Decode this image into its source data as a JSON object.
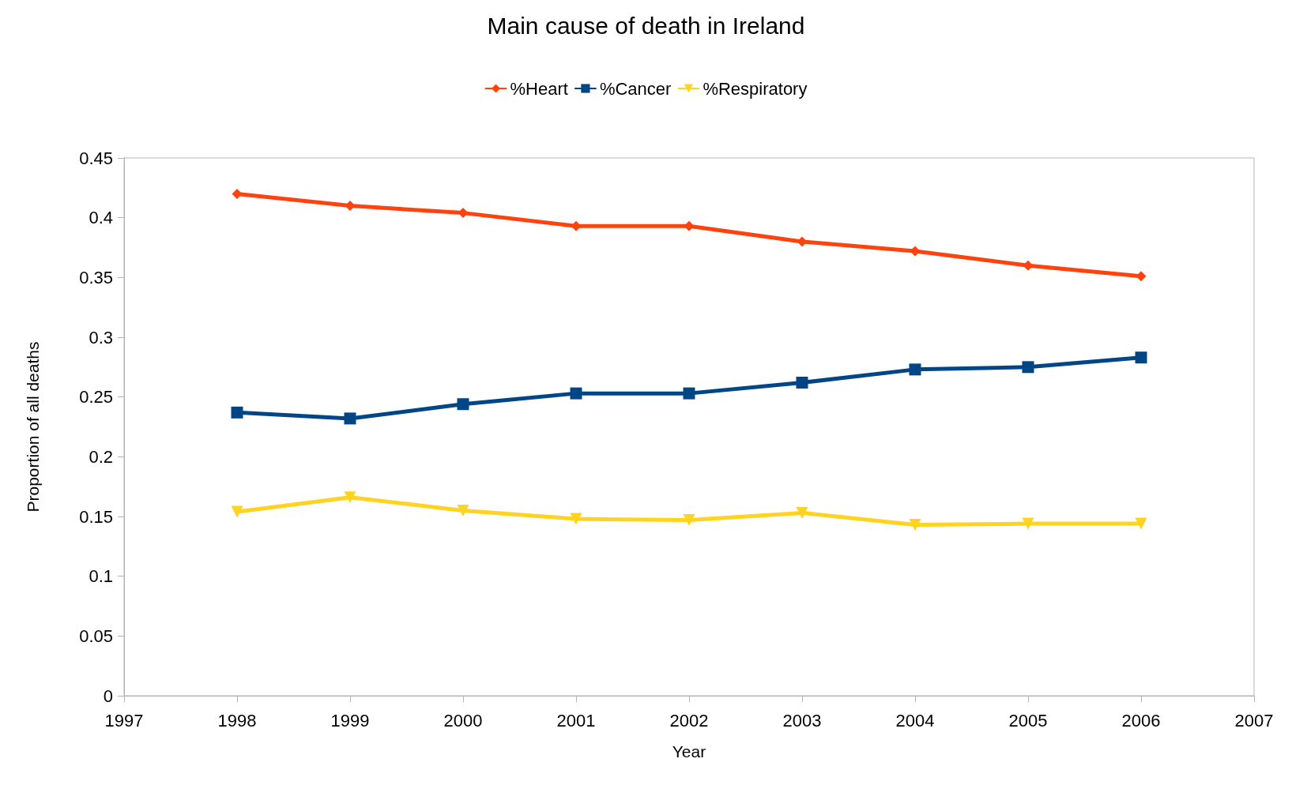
{
  "chart_data": {
    "type": "line",
    "title": "Main cause of death in Ireland",
    "xlabel": "Year",
    "ylabel": "Proportion of all deaths",
    "x": [
      1998,
      1999,
      2000,
      2001,
      2002,
      2003,
      2004,
      2005,
      2006
    ],
    "series": [
      {
        "name": "%Heart",
        "color": "#ff420e",
        "marker": "diamond",
        "values": [
          0.42,
          0.41,
          0.404,
          0.393,
          0.393,
          0.38,
          0.372,
          0.36,
          0.351
        ]
      },
      {
        "name": "%Cancer",
        "color": "#004586",
        "marker": "square",
        "values": [
          0.237,
          0.232,
          0.244,
          0.253,
          0.253,
          0.262,
          0.273,
          0.275,
          0.283
        ]
      },
      {
        "name": "%Respiratory",
        "color": "#ffd320",
        "marker": "triangle",
        "values": [
          0.154,
          0.166,
          0.155,
          0.148,
          0.147,
          0.153,
          0.143,
          0.144,
          0.144
        ]
      }
    ],
    "xlim": [
      1997,
      2007
    ],
    "xticks": [
      1997,
      1998,
      1999,
      2000,
      2001,
      2002,
      2003,
      2004,
      2005,
      2006,
      2007
    ],
    "ylim": [
      0,
      0.45
    ],
    "yticks": [
      0,
      0.05,
      0.1,
      0.15,
      0.2,
      0.25,
      0.3,
      0.35,
      0.4,
      0.45
    ],
    "grid": false,
    "legend": "top",
    "line_style": "solid"
  }
}
